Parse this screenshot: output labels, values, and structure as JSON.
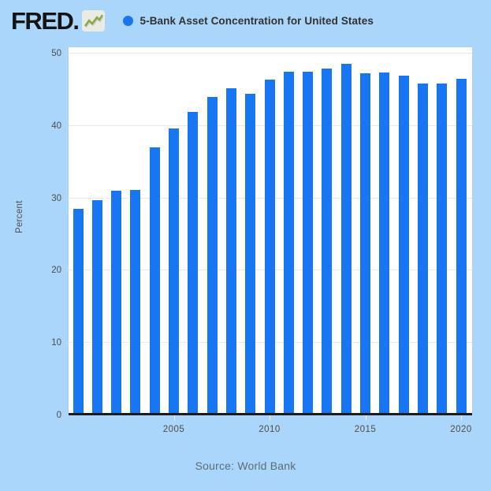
{
  "header": {
    "logo_text": "FRED.",
    "logo_icon": "sparkline-icon",
    "legend_marker": "blue-dot",
    "series_title": "5-Bank Asset Concentration for United States"
  },
  "chart_data": {
    "type": "bar",
    "title": "5-Bank Asset Concentration for United States",
    "categories": [
      "2000",
      "2001",
      "2002",
      "2003",
      "2004",
      "2005",
      "2006",
      "2007",
      "2008",
      "2009",
      "2010",
      "2011",
      "2012",
      "2013",
      "2014",
      "2015",
      "2016",
      "2017",
      "2018",
      "2019",
      "2020"
    ],
    "values": [
      28.5,
      29.7,
      31.0,
      31.2,
      37.0,
      39.6,
      41.9,
      44.0,
      45.2,
      44.4,
      46.4,
      47.5,
      47.5,
      47.9,
      48.6,
      47.3,
      47.4,
      47.0,
      45.9,
      45.9,
      46.5
    ],
    "xlabel": "",
    "ylabel": "Percent",
    "ylim": [
      0,
      50
    ],
    "yticks": [
      0,
      10,
      20,
      30,
      40,
      50
    ],
    "xticks": [
      "2005",
      "2010",
      "2015",
      "2020"
    ],
    "grid": true,
    "legend_position": "top",
    "bar_color": "#1876f2"
  },
  "footer": {
    "source": "Source: World Bank"
  },
  "colors": {
    "background": "#abd6fb",
    "plot_background": "#ffffff",
    "bar": "#1876f2",
    "legend_dot": "#1b76ee",
    "gridline": "#e9e9e9",
    "axis_line": "#1c1c1c",
    "tick_text": "#4d4d4d",
    "title_text": "#313131",
    "footer_text": "#5e6c76",
    "logo_text": "#141414"
  }
}
